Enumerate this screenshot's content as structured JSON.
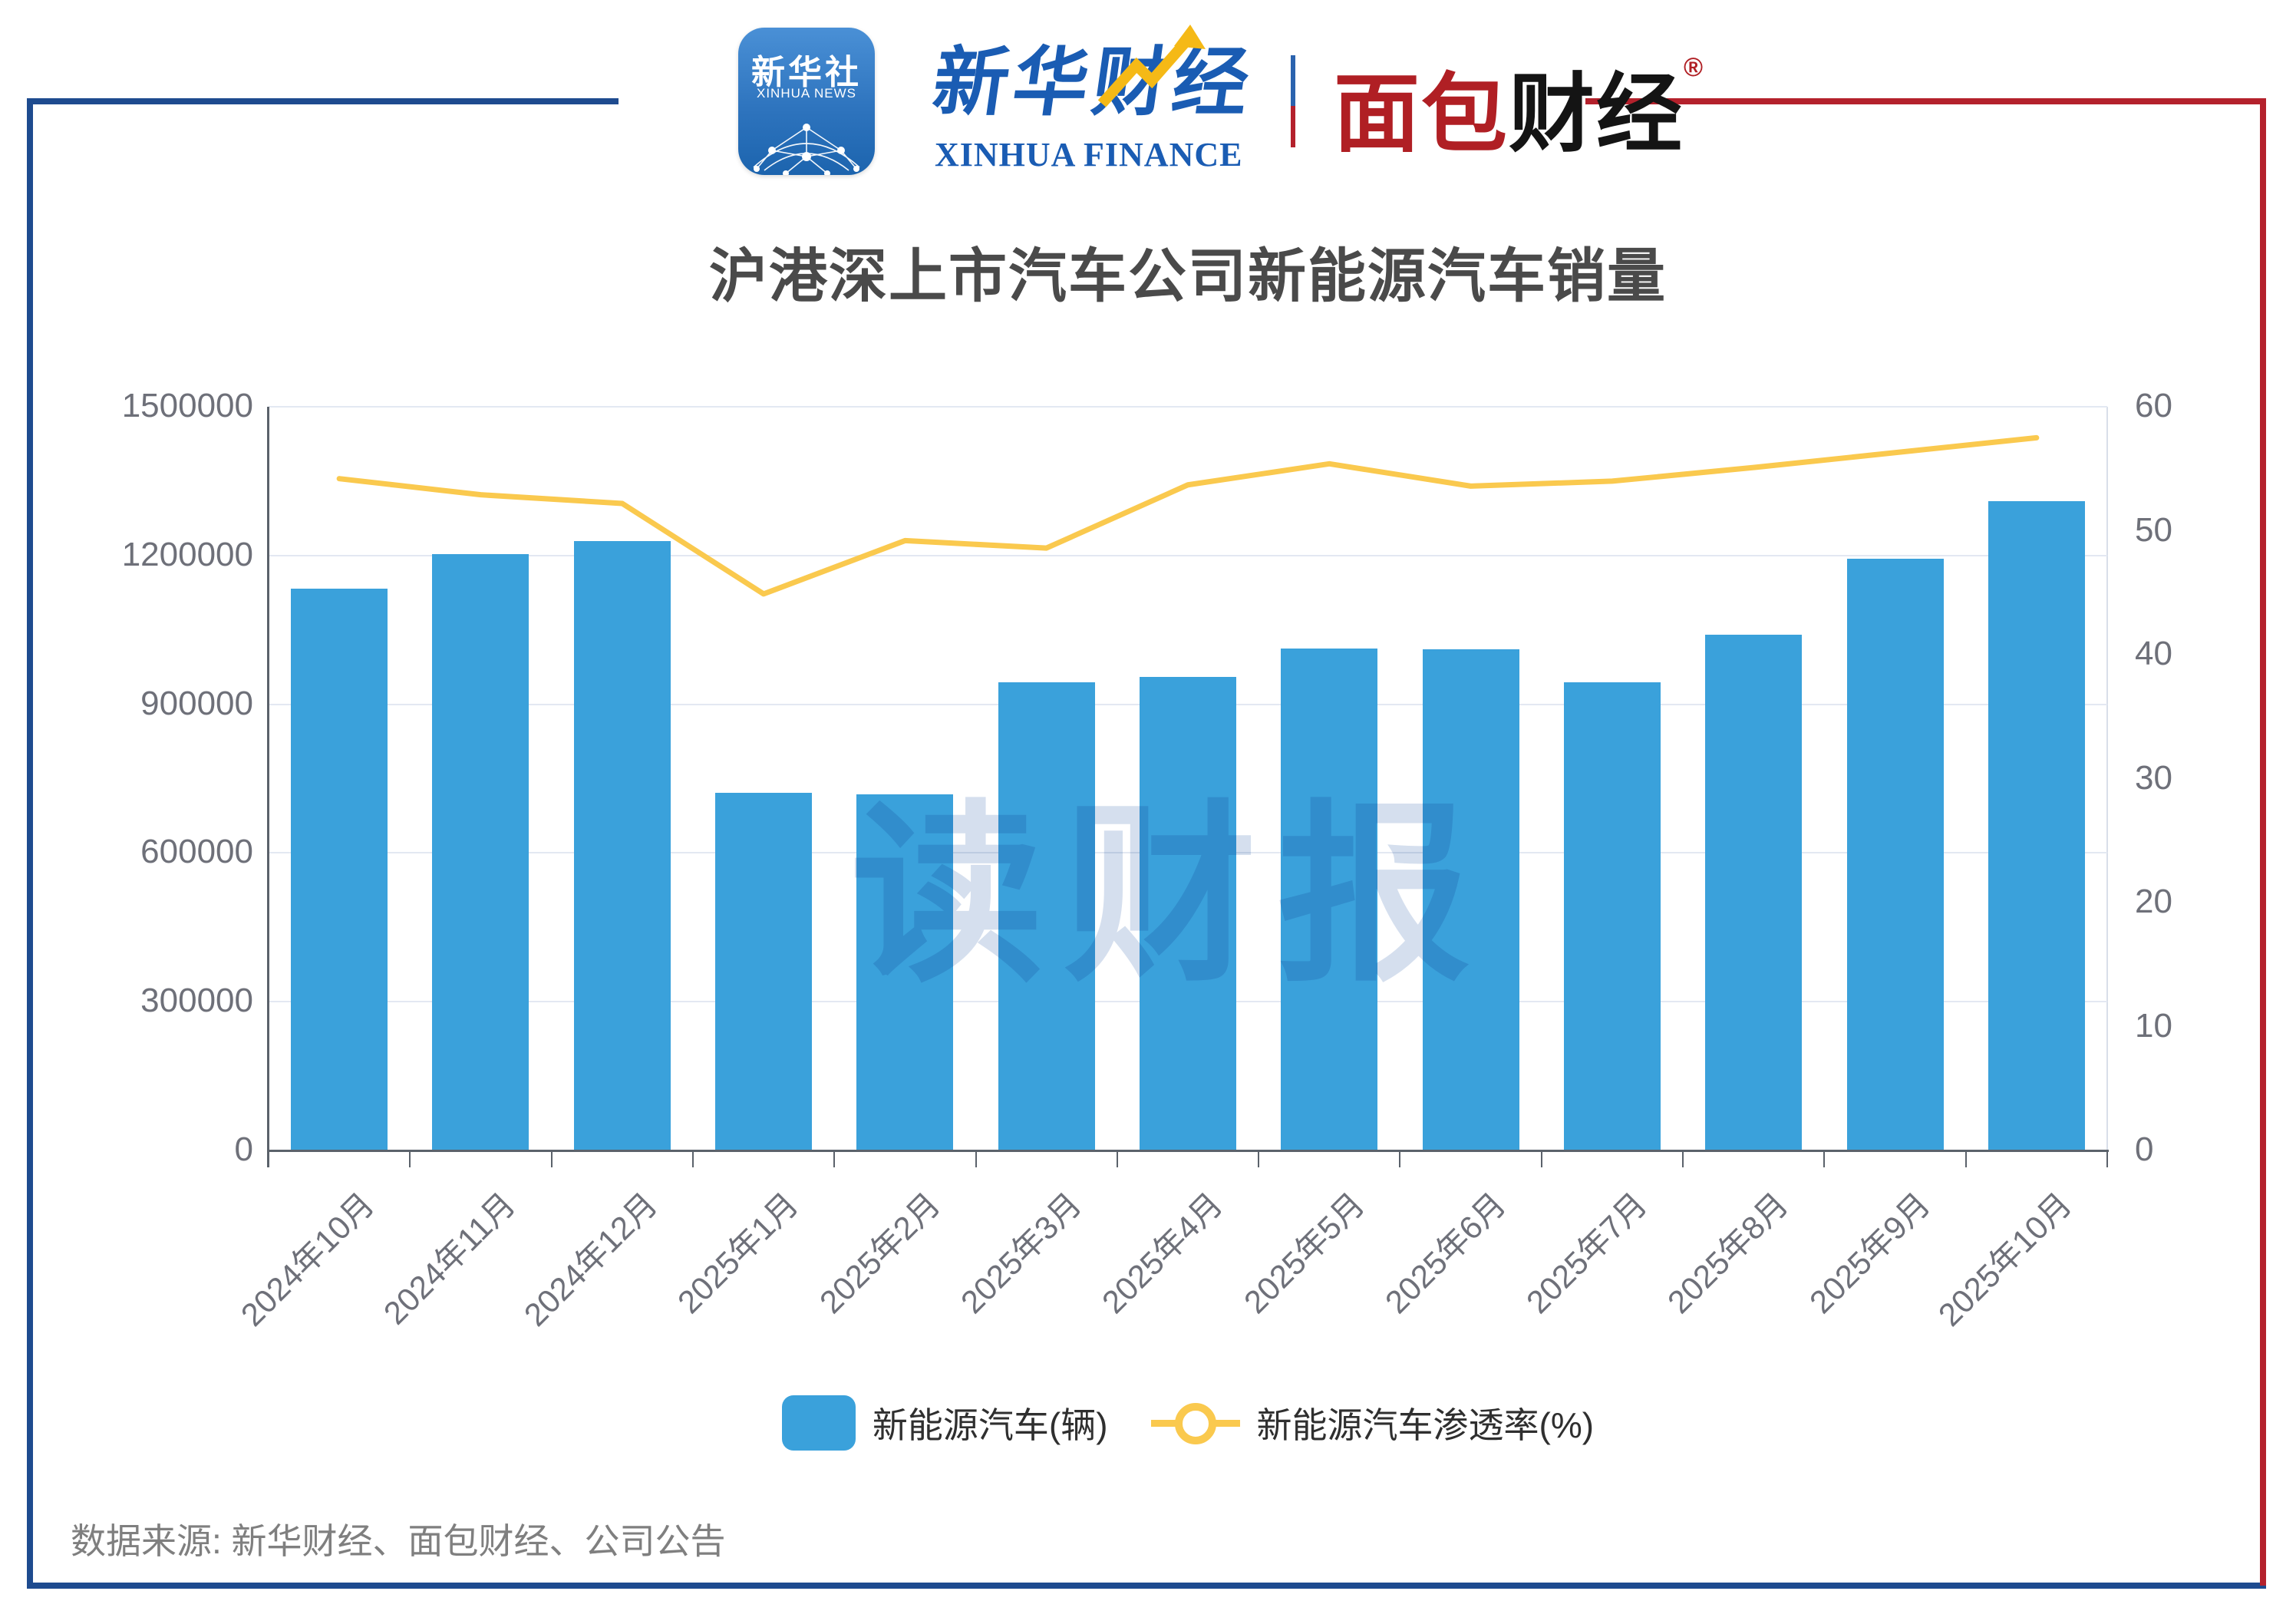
{
  "header": {
    "xinhua_icon": {
      "cn": "新华社",
      "en": "XINHUA NEWS"
    },
    "xinhua_finance": {
      "cn": "新华财经",
      "en": "XINHUA FINANCE"
    },
    "mianbao": {
      "part1": "面包",
      "part2": "财经",
      "reg": "®"
    }
  },
  "title": "沪港深上市汽车公司新能源汽车销量",
  "watermark": "读财报",
  "source": "数据来源: 新华财经、面包财经、公司公告",
  "chart_data": {
    "type": "bar",
    "subtype": "bar+line dual axis",
    "title": "沪港深上市汽车公司新能源汽车销量",
    "categories": [
      "2024年10月",
      "2024年11月",
      "2024年12月",
      "2025年1月",
      "2025年2月",
      "2025年3月",
      "2025年4月",
      "2025年5月",
      "2025年6月",
      "2025年7月",
      "2025年8月",
      "2025年9月",
      "2025年10月"
    ],
    "series": [
      {
        "name": "新能源汽车(辆)",
        "type": "bar",
        "axis": "left",
        "values": [
          1133000,
          1203000,
          1229000,
          722000,
          718000,
          944000,
          955000,
          1013000,
          1011000,
          945000,
          1041000,
          1193000,
          1309000
        ]
      },
      {
        "name": "新能源汽车渗透率(%)",
        "type": "line",
        "axis": "right",
        "values": [
          54.2,
          52.9,
          52.2,
          44.9,
          49.2,
          48.6,
          53.7,
          55.4,
          53.6,
          54.0,
          55.1,
          56.3,
          57.5
        ]
      }
    ],
    "left_axis": {
      "min": 0,
      "max": 1500000,
      "step": 300000,
      "tick_labels": [
        "0",
        "300000",
        "600000",
        "900000",
        "1200000",
        "1500000"
      ]
    },
    "right_axis": {
      "min": 0,
      "max": 60,
      "step": 10,
      "tick_labels": [
        "0",
        "10",
        "20",
        "30",
        "40",
        "50",
        "60"
      ]
    },
    "grid": true,
    "legend_position": "bottom",
    "x_label_rotation_deg": -45
  },
  "colors": {
    "bar": "#3AA1DB",
    "line": "#FAC94E",
    "grid": "#E3E8F2",
    "axis": "#5B626B",
    "axis_label": "#6E7079",
    "title": "#4A4A4A",
    "source_text": "#7F7F7F",
    "frame_blue": "#1E4B8F",
    "frame_red": "#B4212C",
    "watermark": "#D5DFEE",
    "xinhua_blue": "#1A5CB3",
    "mianbao_red": "#B01F24"
  }
}
